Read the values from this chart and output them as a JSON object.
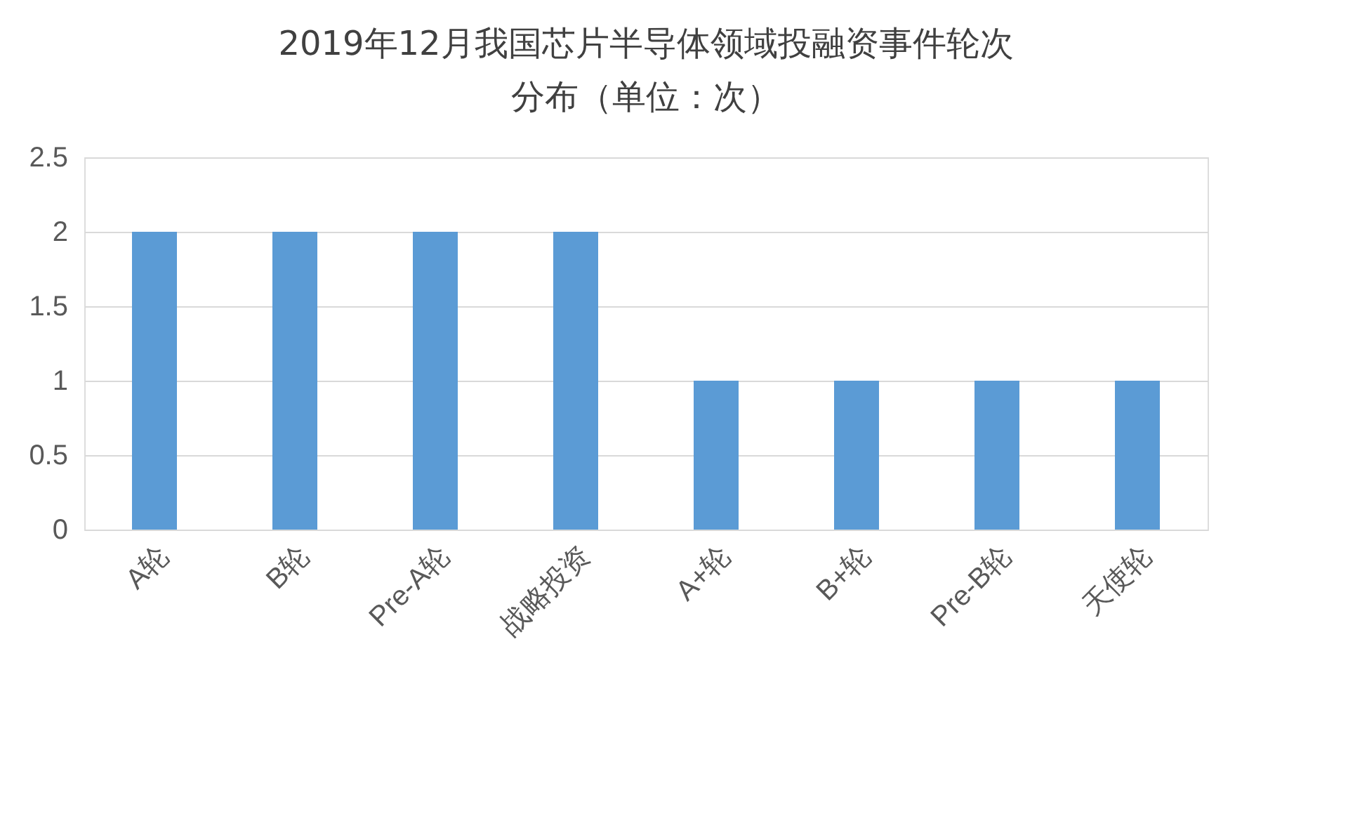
{
  "chart_data": {
    "type": "bar",
    "title": "2019年12月我国芯片半导体领域投融资事件轮次分布（单位：次）",
    "categories": [
      "A轮",
      "B轮",
      "Pre-A轮",
      "战略投资",
      "A+轮",
      "B+轮",
      "Pre-B轮",
      "天使轮"
    ],
    "values": [
      2,
      2,
      2,
      2,
      1,
      1,
      1,
      1
    ],
    "color": "#5b9bd5",
    "ylim": [
      0,
      2.5
    ],
    "yticks": [
      0,
      0.5,
      1,
      1.5,
      2,
      2.5
    ],
    "grid": "y"
  }
}
